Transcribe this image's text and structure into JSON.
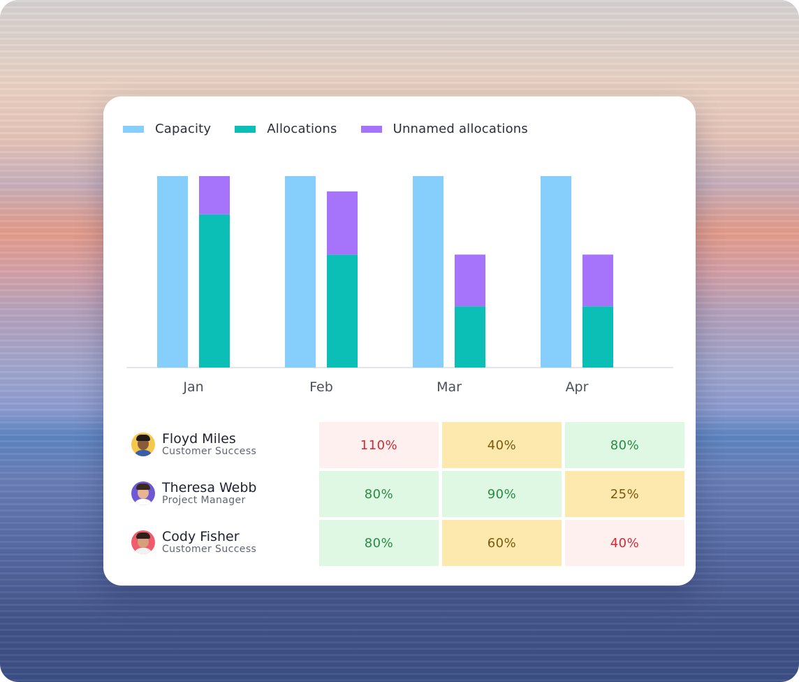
{
  "chart_data": {
    "type": "bar",
    "categories": [
      "Jan",
      "Feb",
      "Mar",
      "Apr"
    ],
    "series": [
      {
        "name": "Capacity",
        "values": [
          100,
          100,
          100,
          100
        ]
      },
      {
        "name": "Allocations",
        "values": [
          80,
          59,
          32,
          32
        ]
      },
      {
        "name": "Unnamed allocations",
        "values": [
          20,
          33,
          27,
          27
        ]
      }
    ],
    "stacked_series": [
      "Allocations",
      "Unnamed allocations"
    ],
    "ylim": [
      0,
      100
    ],
    "colors": {
      "Capacity": "#86cefc",
      "Allocations": "#0bbfb7",
      "Unnamed allocations": "#a674fb"
    },
    "axis_color": "#d9dde3",
    "grid": false,
    "legend": "top-left"
  },
  "people": [
    {
      "name": "Floyd Miles",
      "role": "Customer Success",
      "avatar": {
        "bg": "#f5c74a",
        "skin": "#8a5a3c",
        "hair": "#1f1a17",
        "shirt": "#3a5fa8"
      }
    },
    {
      "name": "Theresa Webb",
      "role": "Project Manager",
      "avatar": {
        "bg": "#6f58d6",
        "skin": "#e7b592",
        "hair": "#3a2a22",
        "shirt": "#ffffff"
      }
    },
    {
      "name": "Cody Fisher",
      "role": "Customer Success",
      "avatar": {
        "bg": "#ef5d6b",
        "skin": "#d6a07e",
        "hair": "#2e211b",
        "shirt": "#f2f2f2"
      }
    }
  ],
  "allocation_table": [
    [
      {
        "value": "110%",
        "status": "over"
      },
      {
        "value": "40%",
        "status": "warn"
      },
      {
        "value": "80%",
        "status": "good"
      }
    ],
    [
      {
        "value": "80%",
        "status": "good"
      },
      {
        "value": "90%",
        "status": "good"
      },
      {
        "value": "25%",
        "status": "warn"
      }
    ],
    [
      {
        "value": "80%",
        "status": "good"
      },
      {
        "value": "60%",
        "status": "warn"
      },
      {
        "value": "40%",
        "status": "over"
      }
    ]
  ],
  "status_styles": {
    "over": {
      "bg": "#fff0f0",
      "fg": "#cf2a35"
    },
    "warn": {
      "bg": "#fde8ad",
      "fg": "#7a5a12"
    },
    "good": {
      "bg": "#dff8e3",
      "fg": "#2a8a45"
    }
  }
}
